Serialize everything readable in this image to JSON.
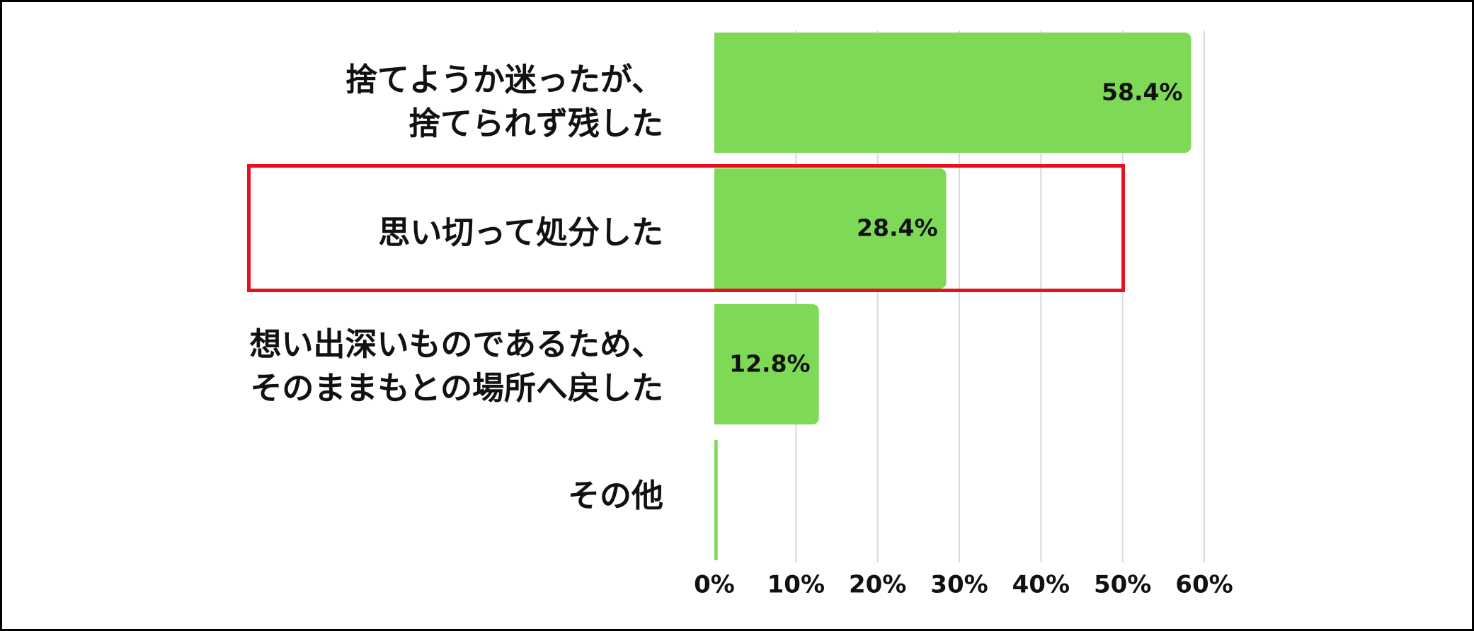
{
  "chart_data": {
    "type": "bar",
    "orientation": "horizontal",
    "categories": [
      "捨てようか迷ったが、\n捨てられず残した",
      "思い切って処分した",
      "想い出深いものであるため、\nそのままもとの場所へ戻した",
      "その他"
    ],
    "values": [
      58.4,
      28.4,
      12.8,
      0.4
    ],
    "data_labels": [
      "58.4%",
      "28.4%",
      "12.8%",
      ""
    ],
    "xlim": [
      0,
      60
    ],
    "x_ticks": [
      0,
      10,
      20,
      30,
      40,
      50,
      60
    ],
    "x_tick_labels": [
      "0%",
      "10%",
      "20%",
      "30%",
      "40%",
      "50%",
      "60%"
    ],
    "title": "",
    "xlabel": "",
    "ylabel": "",
    "grid": "vertical",
    "legend": "none",
    "highlighted_category": "思い切って処分した"
  },
  "colors": {
    "bar": "#7ed957",
    "grid": "#d9d9d9",
    "highlight_border": "#e8101a",
    "text": "#111111",
    "frame": "#000000"
  }
}
